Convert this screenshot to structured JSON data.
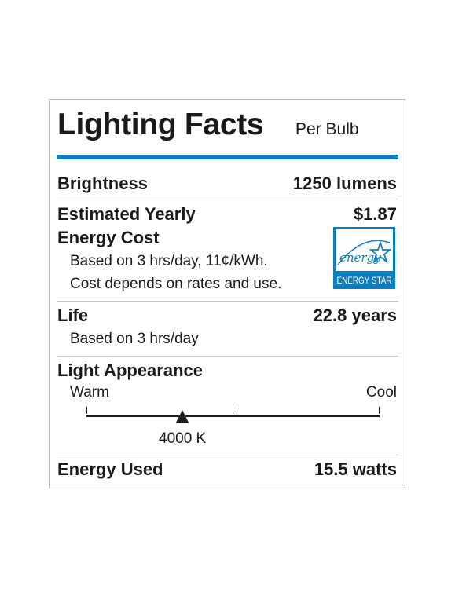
{
  "header": {
    "title": "Lighting Facts",
    "subtitle": "Per Bulb"
  },
  "brightness": {
    "label": "Brightness",
    "value": "1250 lumens"
  },
  "energy_cost": {
    "label_line1": "Estimated Yearly",
    "label_line2": "Energy Cost",
    "value": "$1.87",
    "note1": "Based on 3 hrs/day, 11¢/kWh.",
    "note2": "Cost depends on rates and use."
  },
  "energy_star": {
    "script_text": "energy",
    "badge_text": "ENERGY STAR",
    "color": "#0a7fc0"
  },
  "life": {
    "label": "Life",
    "value": "22.8 years",
    "note": "Based on 3 hrs/day"
  },
  "appearance": {
    "label": "Light Appearance",
    "warm_label": "Warm",
    "cool_label": "Cool",
    "value": "4000 K"
  },
  "energy_used": {
    "label": "Energy Used",
    "value": "15.5 watts"
  },
  "colors": {
    "rule_blue": "#0a7fc0",
    "text": "#1a1a1a",
    "border": "#b9b9b9"
  }
}
